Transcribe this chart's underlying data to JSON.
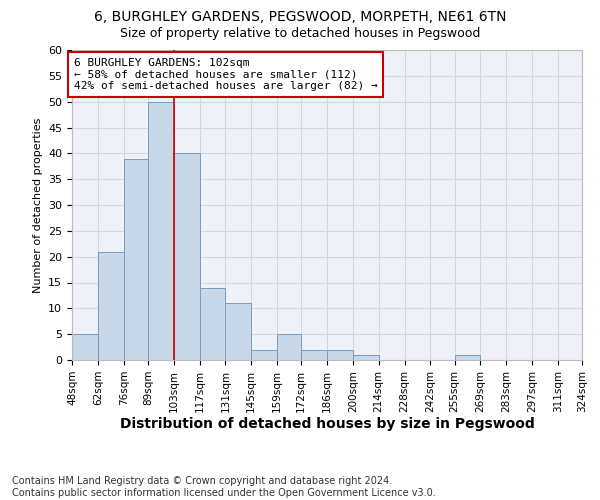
{
  "title1": "6, BURGHLEY GARDENS, PEGSWOOD, MORPETH, NE61 6TN",
  "title2": "Size of property relative to detached houses in Pegswood",
  "xlabel": "Distribution of detached houses by size in Pegswood",
  "ylabel": "Number of detached properties",
  "bar_edges": [
    48,
    62,
    76,
    89,
    103,
    117,
    131,
    145,
    159,
    172,
    186,
    200,
    214,
    228,
    242,
    255,
    269,
    283,
    297,
    311,
    324
  ],
  "bar_heights": [
    5,
    21,
    39,
    50,
    40,
    14,
    11,
    2,
    5,
    2,
    2,
    1,
    0,
    0,
    0,
    1,
    0,
    0,
    0,
    0
  ],
  "bar_color": "#c8d8e8",
  "bar_edge_color": "#7a9cbf",
  "reference_line_x": 103,
  "reference_line_color": "#cc0000",
  "annotation_box_text": "6 BURGHLEY GARDENS: 102sqm\n← 58% of detached houses are smaller (112)\n42% of semi-detached houses are larger (82) →",
  "annotation_box_color": "#cc0000",
  "ylim": [
    0,
    60
  ],
  "yticks": [
    0,
    5,
    10,
    15,
    20,
    25,
    30,
    35,
    40,
    45,
    50,
    55,
    60
  ],
  "tick_labels": [
    "48sqm",
    "62sqm",
    "76sqm",
    "89sqm",
    "103sqm",
    "117sqm",
    "131sqm",
    "145sqm",
    "159sqm",
    "172sqm",
    "186sqm",
    "200sqm",
    "214sqm",
    "228sqm",
    "242sqm",
    "255sqm",
    "269sqm",
    "283sqm",
    "297sqm",
    "311sqm",
    "324sqm"
  ],
  "grid_color": "#d0d8e8",
  "bg_color": "#eef2f8",
  "footer": "Contains HM Land Registry data © Crown copyright and database right 2024.\nContains public sector information licensed under the Open Government Licence v3.0.",
  "title1_fontsize": 10,
  "title2_fontsize": 9,
  "xlabel_fontsize": 10,
  "ylabel_fontsize": 8,
  "annotation_fontsize": 8,
  "footer_fontsize": 7,
  "tick_fontsize": 7.5
}
